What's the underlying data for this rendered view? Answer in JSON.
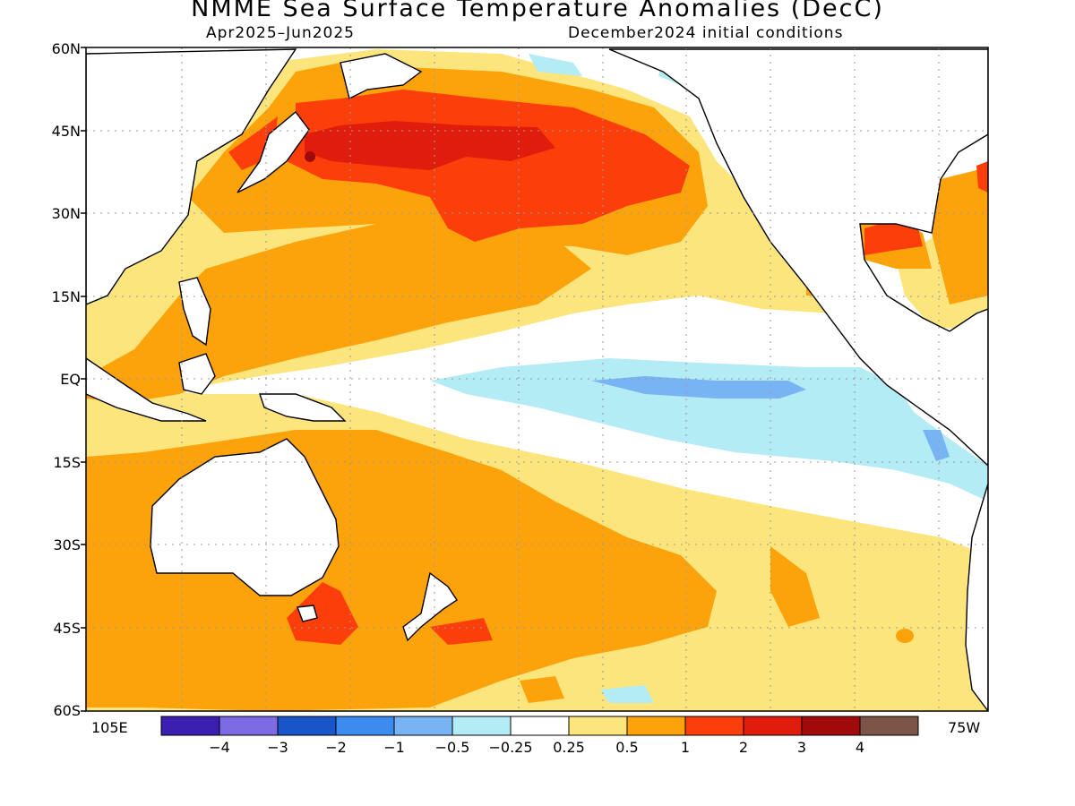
{
  "title": "NMME Sea Surface Temperature Anomalies (DecC)",
  "subtitle_left": "Apr2025–Jun2025",
  "subtitle_right": "December2024 initial conditions",
  "lat_labels": [
    "60N",
    "45N",
    "30N",
    "15N",
    "EQ",
    "15S",
    "30S",
    "45S",
    "60S"
  ],
  "lon_labels": {
    "west": "105E",
    "east": "75W"
  },
  "colorbar": {
    "colors": [
      "#3a1fb0",
      "#7c6be3",
      "#1855c8",
      "#3c8cf0",
      "#78b4f4",
      "#b4ecf6",
      "#ffffff",
      "#fde57e",
      "#fca20a",
      "#fc3e0a",
      "#e01c0c",
      "#a10a0a",
      "#7c5448"
    ],
    "labels": [
      "−4",
      "−3",
      "−2",
      "−1",
      "−0.5",
      "−0.25",
      "0.25",
      "0.5",
      "1",
      "2",
      "3",
      "4"
    ]
  },
  "legend_colors": {
    "land": "#ffffff",
    "coastline": "#000000",
    "grid": "#9a9a9a"
  }
}
